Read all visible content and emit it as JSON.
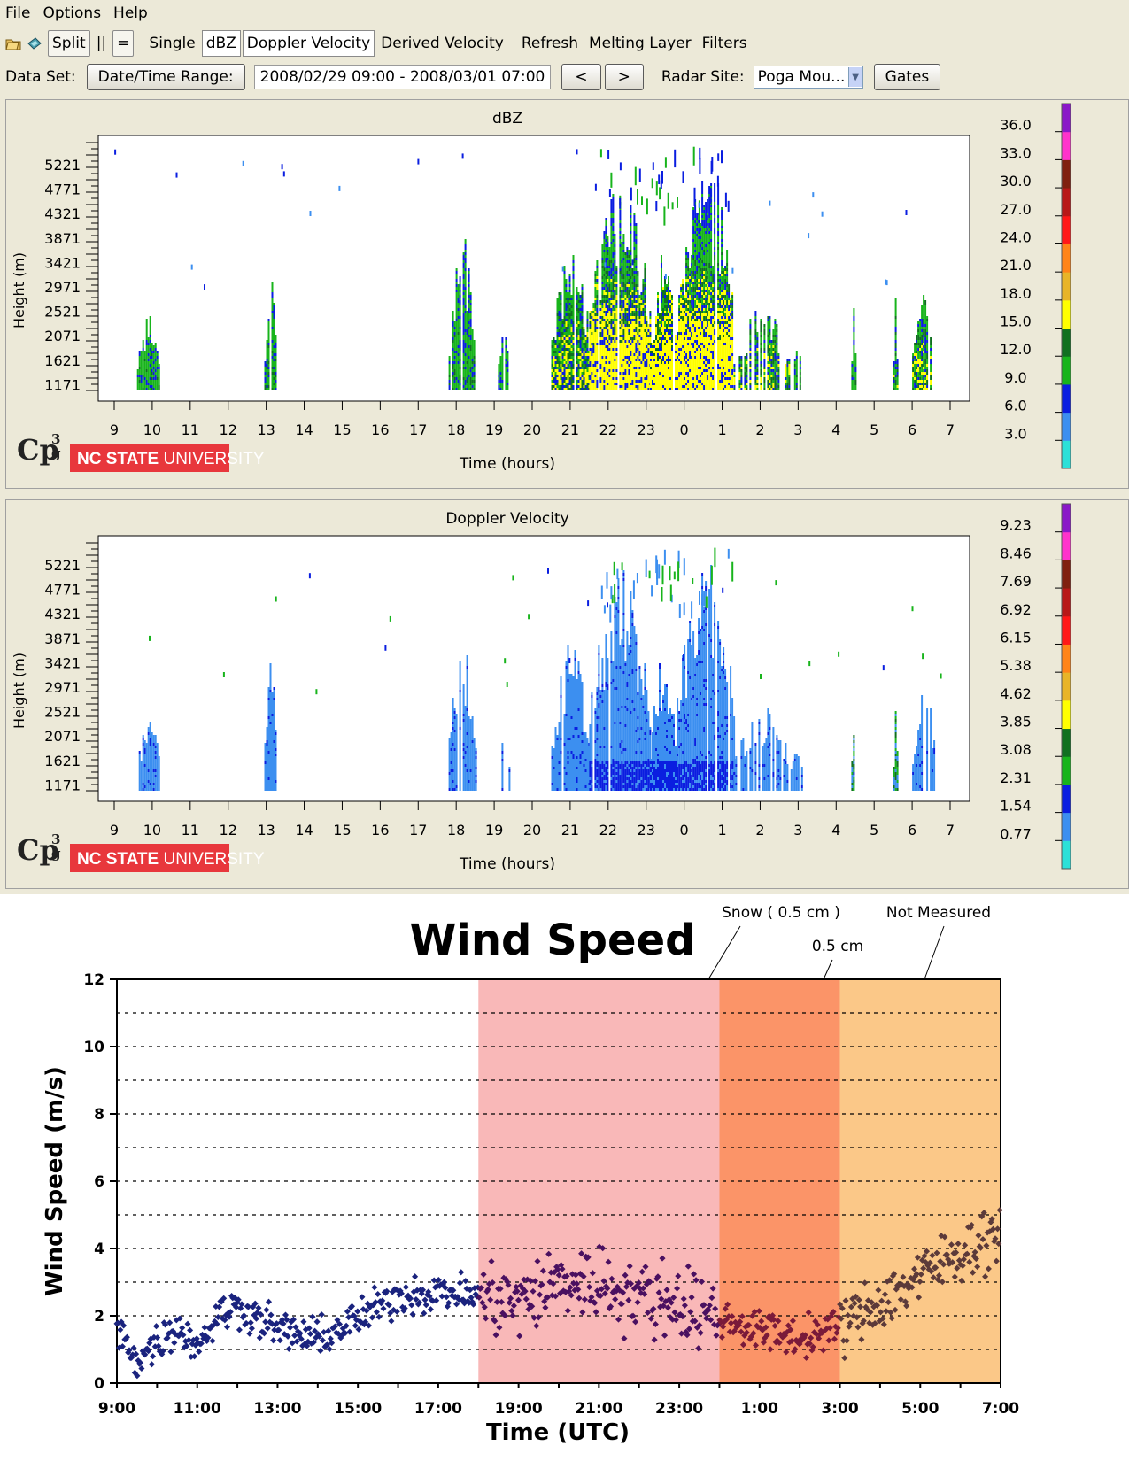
{
  "menu": {
    "file": "File",
    "options": "Options",
    "help": "Help"
  },
  "toolbar": {
    "split": "Split",
    "parallel": "||",
    "equal": "=",
    "single": "Single",
    "dbz": "dBZ",
    "doppler": "Doppler Velocity",
    "derived": "Derived Velocity",
    "refresh": "Refresh",
    "melting": "Melting Layer",
    "filters": "Filters"
  },
  "datarow": {
    "dataset_label": "Data Set:",
    "range_button": "Date/Time Range:",
    "range_value": "2008/02/29 09:00 - 2008/03/01 07:00",
    "prev": "<",
    "next": ">",
    "radar_label": "Radar Site:",
    "radar_value": "Poga Mou...",
    "gates": "Gates"
  },
  "logo": {
    "cp3g": "Cp3g",
    "ncsu_bold": "NC STATE",
    "ncsu_light": "UNIVERSITY"
  },
  "icons": [
    "open-folder-icon",
    "save-icon",
    "dropdown-arrow-icon"
  ],
  "chart_data": [
    {
      "type": "heatmap",
      "title": "dBZ",
      "xlabel": "Time (hours)",
      "ylabel": "Height (m)",
      "x_ticks": [
        "9",
        "10",
        "11",
        "12",
        "13",
        "14",
        "15",
        "16",
        "17",
        "18",
        "19",
        "20",
        "21",
        "22",
        "23",
        "0",
        "1",
        "2",
        "3",
        "4",
        "5",
        "6",
        "7"
      ],
      "y_ticks": [
        "5221",
        "4771",
        "4321",
        "3871",
        "3421",
        "2971",
        "2521",
        "2071",
        "1621",
        "1171"
      ],
      "colorbar": [
        "36.0",
        "33.0",
        "30.0",
        "27.0",
        "24.0",
        "21.0",
        "18.0",
        "15.0",
        "12.0",
        "9.0",
        "6.0",
        "3.0"
      ],
      "colors": [
        "#2ce0d8",
        "#3c8ff0",
        "#0a1ee0",
        "#18b41c",
        "#107020",
        "#ffff00",
        "#e8b428",
        "#ff8418",
        "#ff1818",
        "#b81818",
        "#802010",
        "#ff33cc",
        "#8a18c8"
      ]
    },
    {
      "type": "heatmap",
      "title": "Doppler Velocity",
      "xlabel": "Time (hours)",
      "ylabel": "Height (m)",
      "x_ticks": [
        "9",
        "10",
        "11",
        "12",
        "13",
        "14",
        "15",
        "16",
        "17",
        "18",
        "19",
        "20",
        "21",
        "22",
        "23",
        "0",
        "1",
        "2",
        "3",
        "4",
        "5",
        "6",
        "7"
      ],
      "y_ticks": [
        "5221",
        "4771",
        "4321",
        "3871",
        "3421",
        "2971",
        "2521",
        "2071",
        "1621",
        "1171"
      ],
      "colorbar": [
        "9.23",
        "8.46",
        "7.69",
        "6.92",
        "6.15",
        "5.38",
        "4.62",
        "3.85",
        "3.08",
        "2.31",
        "1.54",
        "0.77"
      ],
      "colors": [
        "#2ce0d8",
        "#3c8ff0",
        "#0a1ee0",
        "#18b41c",
        "#107020",
        "#ffff00",
        "#e8b428",
        "#ff8418",
        "#ff1818",
        "#b81818",
        "#802010",
        "#ff33cc",
        "#8a18c8"
      ]
    },
    {
      "type": "scatter",
      "title": "Wind Speed",
      "xlabel": "Time (UTC)",
      "ylabel": "Wind Speed (m/s)",
      "ylim": [
        0,
        12
      ],
      "y_ticks": [
        "0",
        "2",
        "4",
        "6",
        "8",
        "10",
        "12"
      ],
      "x_ticks": [
        "9:00",
        "11:00",
        "13:00",
        "15:00",
        "17:00",
        "19:00",
        "21:00",
        "23:00",
        "1:00",
        "3:00",
        "5:00",
        "7:00"
      ],
      "x_range_hours": [
        9,
        31
      ],
      "shaded_regions": [
        {
          "from": 18,
          "to": 24,
          "color": "#f9b8b8"
        },
        {
          "from": 24,
          "to": 27,
          "color": "#fb9468"
        },
        {
          "from": 27,
          "to": 31,
          "color": "#fbc888"
        }
      ],
      "annotations": [
        "Snow ( 0.5 cm )",
        "0.5 cm",
        "Not Measured"
      ],
      "trend_hours": [
        9,
        9.5,
        10,
        10.5,
        11,
        11.5,
        12,
        13,
        14,
        15,
        16,
        17,
        18,
        19,
        20,
        21,
        22,
        23,
        24,
        25,
        26,
        27,
        28,
        29,
        30,
        31
      ],
      "trend_values": [
        1.6,
        0.7,
        1.2,
        1.7,
        1.1,
        2.0,
        2.3,
        1.6,
        1.3,
        1.9,
        2.6,
        2.7,
        2.6,
        2.4,
        3.0,
        3.0,
        2.6,
        2.4,
        1.9,
        1.6,
        1.3,
        1.7,
        2.4,
        3.2,
        3.9,
        4.5
      ]
    }
  ]
}
